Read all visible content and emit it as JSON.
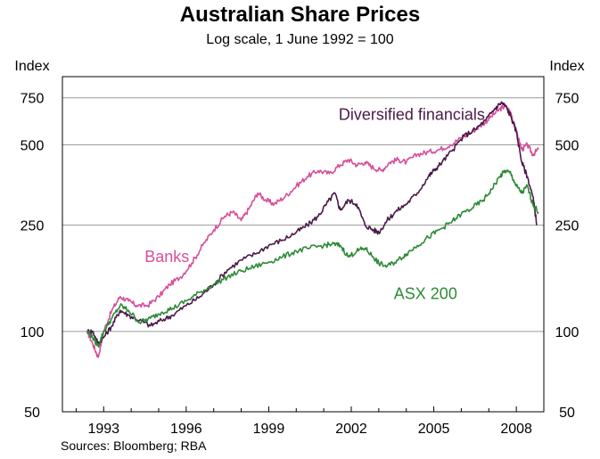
{
  "chart_data": {
    "type": "line",
    "title": "Australian Share Prices",
    "subtitle": "Log scale, 1 June 1992 = 100",
    "ylabel_left": "Index",
    "ylabel_right": "Index",
    "yscale": "log",
    "ylim": [
      50,
      900
    ],
    "yticks": [
      50,
      100,
      250,
      500,
      750
    ],
    "xlim": [
      1991.5,
      2009.0
    ],
    "xticks": [
      1993,
      1996,
      1999,
      2002,
      2005,
      2008
    ],
    "grid": "horizontal",
    "source": "Sources: Bloomberg; RBA",
    "series": [
      {
        "name": "Banks",
        "color": "#d64f9a",
        "label": {
          "text": "Banks",
          "x": 1995.3,
          "y": 182
        },
        "x": [
          1992.4,
          1992.6,
          1992.8,
          1993.0,
          1993.3,
          1993.6,
          1993.9,
          1994.2,
          1994.6,
          1995.0,
          1995.4,
          1995.8,
          1996.2,
          1996.6,
          1997.0,
          1997.4,
          1997.7,
          1998.0,
          1998.3,
          1998.6,
          1998.9,
          1999.2,
          1999.6,
          2000.0,
          2000.4,
          2000.8,
          2001.2,
          2001.6,
          2001.9,
          2002.2,
          2002.5,
          2002.8,
          2003.1,
          2003.4,
          2003.7,
          2004.0,
          2004.4,
          2004.8,
          2005.2,
          2005.6,
          2006.0,
          2006.4,
          2006.8,
          2007.1,
          2007.4,
          2007.6,
          2007.8,
          2008.0,
          2008.2,
          2008.4,
          2008.6,
          2008.8
        ],
        "values": [
          100,
          90,
          80,
          100,
          120,
          135,
          130,
          125,
          125,
          135,
          150,
          160,
          180,
          210,
          240,
          270,
          280,
          260,
          290,
          330,
          310,
          300,
          320,
          350,
          380,
          400,
          390,
          420,
          440,
          420,
          430,
          410,
          400,
          430,
          440,
          430,
          460,
          470,
          480,
          500,
          530,
          560,
          600,
          640,
          680,
          700,
          660,
          560,
          480,
          500,
          460,
          480
        ]
      },
      {
        "name": "Diversified financials",
        "color": "#4a1a48",
        "label": {
          "text": "Diversified financials",
          "x": 2004.2,
          "y": 620
        },
        "x": [
          1992.4,
          1992.6,
          1992.8,
          1993.0,
          1993.3,
          1993.6,
          1993.9,
          1994.3,
          1994.7,
          1995.1,
          1995.5,
          1996.0,
          1996.5,
          1997.0,
          1997.5,
          1998.0,
          1998.5,
          1999.0,
          1999.5,
          2000.0,
          2000.4,
          2000.8,
          2001.1,
          2001.4,
          2001.6,
          2001.9,
          2002.2,
          2002.5,
          2002.8,
          2003.0,
          2003.3,
          2003.6,
          2004.0,
          2004.4,
          2004.8,
          2005.0,
          2005.3,
          2005.7,
          2006.1,
          2006.5,
          2006.9,
          2007.2,
          2007.45,
          2007.6,
          2007.8,
          2008.0,
          2008.2,
          2008.4,
          2008.6,
          2008.75
        ],
        "values": [
          100,
          100,
          90,
          95,
          105,
          120,
          115,
          110,
          105,
          110,
          115,
          125,
          135,
          150,
          170,
          185,
          195,
          210,
          220,
          235,
          250,
          270,
          300,
          330,
          285,
          310,
          300,
          250,
          240,
          235,
          260,
          280,
          300,
          330,
          380,
          400,
          430,
          480,
          540,
          570,
          620,
          680,
          720,
          700,
          640,
          560,
          430,
          380,
          320,
          250
        ]
      },
      {
        "name": "ASX 200",
        "color": "#2e8b38",
        "label": {
          "text": "ASX 200",
          "x": 2004.7,
          "y": 132
        },
        "x": [
          1992.4,
          1992.6,
          1992.8,
          1993.0,
          1993.3,
          1993.6,
          1993.9,
          1994.3,
          1994.7,
          1995.1,
          1995.5,
          1996.0,
          1996.5,
          1997.0,
          1997.5,
          1998.0,
          1998.5,
          1999.0,
          1999.5,
          2000.0,
          2000.5,
          2001.0,
          2001.3,
          2001.6,
          2001.9,
          2002.2,
          2002.5,
          2002.8,
          2003.0,
          2003.3,
          2003.7,
          2004.0,
          2004.4,
          2004.8,
          2005.2,
          2005.6,
          2006.0,
          2006.4,
          2006.8,
          2007.1,
          2007.4,
          2007.6,
          2007.8,
          2008.0,
          2008.2,
          2008.4,
          2008.6,
          2008.8
        ],
        "values": [
          100,
          95,
          88,
          100,
          112,
          125,
          120,
          108,
          112,
          118,
          122,
          130,
          140,
          150,
          160,
          168,
          175,
          182,
          190,
          200,
          205,
          210,
          212,
          210,
          190,
          200,
          205,
          190,
          180,
          175,
          185,
          195,
          210,
          225,
          240,
          255,
          275,
          290,
          310,
          340,
          380,
          400,
          390,
          350,
          330,
          350,
          300,
          280
        ]
      }
    ]
  }
}
